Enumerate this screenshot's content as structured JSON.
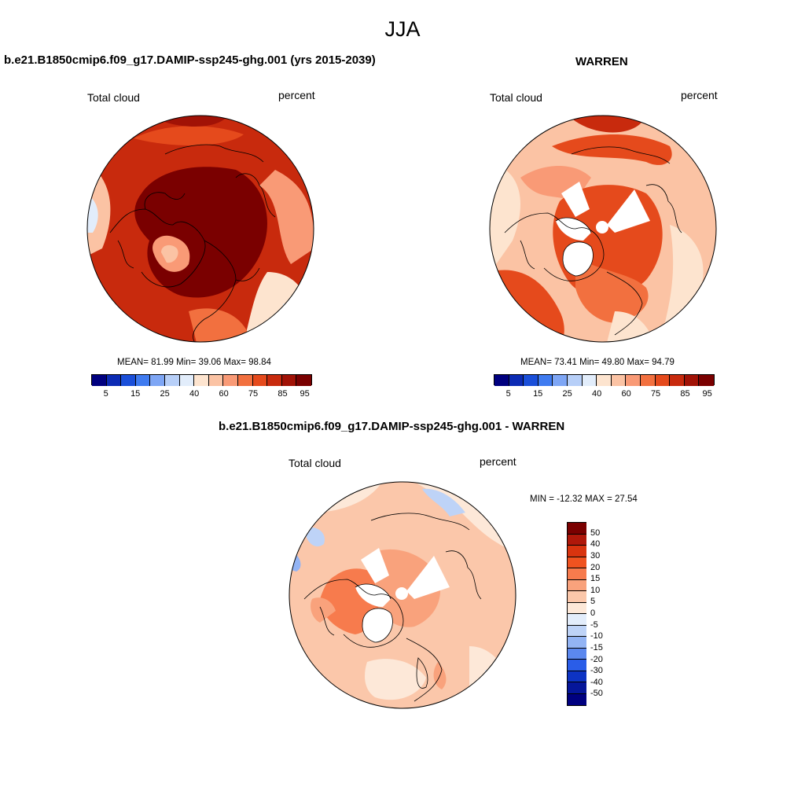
{
  "header": {
    "season": "JJA"
  },
  "panels": {
    "model": {
      "title": "b.e21.B1850cmip6.f09_g17.DAMIP-ssp245-ghg.001 (yrs 2015-2039)",
      "variable": "Total cloud",
      "units": "percent",
      "stats": "MEAN=  81.99  Min=  39.06  Max=  98.84"
    },
    "obs": {
      "title": "WARREN",
      "variable": "Total cloud",
      "units": "percent",
      "stats": "MEAN=  73.41  Min=  49.80  Max=  94.79"
    },
    "diff": {
      "title": "b.e21.B1850cmip6.f09_g17.DAMIP-ssp245-ghg.001 - WARREN",
      "variable": "Total cloud",
      "units": "percent",
      "stats": "MIN = -12.32 MAX =  27.54"
    }
  },
  "colorbar_abs": {
    "colors": [
      "#00007f",
      "#0c2bb4",
      "#1a4fd9",
      "#3f7bf0",
      "#7ea6f5",
      "#b7cff8",
      "#e2edfb",
      "#fde4cf",
      "#fbc3a4",
      "#f99a76",
      "#f2703f",
      "#e54a1c",
      "#c82a0d",
      "#a11206",
      "#7a0000"
    ],
    "labels": [
      "5",
      "15",
      "25",
      "40",
      "60",
      "75",
      "85",
      "95"
    ]
  },
  "colorbar_diff": {
    "colors": [
      "#7a0000",
      "#b0180a",
      "#d9340f",
      "#f05320",
      "#f77b4d",
      "#f9a27c",
      "#fbc7aa",
      "#fde8d8",
      "#e3edfb",
      "#bed3f7",
      "#93b4f4",
      "#5b88ef",
      "#2a5de8",
      "#0d33c4",
      "#05169a",
      "#000080"
    ],
    "labels": [
      "50",
      "40",
      "30",
      "20",
      "15",
      "10",
      "5",
      "0",
      "-5",
      "-10",
      "-15",
      "-20",
      "-30",
      "-40",
      "-50"
    ]
  }
}
